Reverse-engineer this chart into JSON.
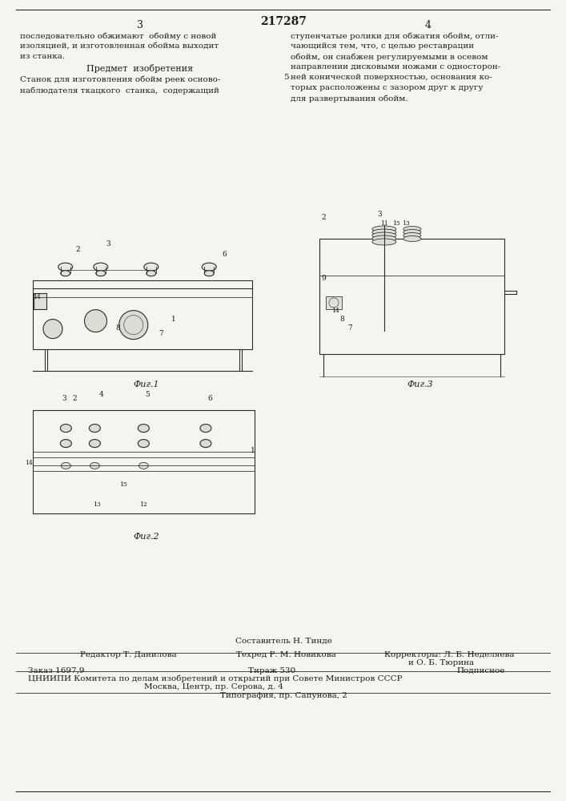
{
  "patent_number": "217287",
  "page_numbers": [
    "3",
    "4"
  ],
  "background_color": "#f5f5f0",
  "text_color": "#1a1a1a",
  "line_color": "#2a2a2a",
  "col3_text": [
    "последовательно обжимают  обойму с новой",
    "изоляцией, и изготовленная обойма выходит",
    "из станка."
  ],
  "predmet_title": "Предмет  изобретения",
  "predmet_text": [
    "Станок для изготовления обойм реек осново-",
    "наблюдателя ткацкого  станка,  содержащий"
  ],
  "col4_text": [
    "ступенчатые ролики для обжатия обойм, отли-",
    "чающийся тем, что, с целью реставрации",
    "обойм, он снабжен регулируемыми в осевом",
    "направлении дисковыми ножами с односторон-",
    "ней конической поверхностью, основания ко-",
    "торых расположены с зазором друг к другу",
    "для развертывания обойм."
  ],
  "col4_number": "5",
  "fig_captions": [
    "Фиг.1",
    "Фиг.2",
    "Фиг.3"
  ],
  "footer_sestavitel": "Составитель Н. Тинде",
  "footer_editor": "Редактор Т. Данилова",
  "footer_tekhred": "Техред Р. М. Новикова",
  "footer_korrektory": "Корректоры: Л. Б. Неделяева",
  "footer_korrektory2": "и О. Б. Тюрина",
  "footer_zakaz": "Заказ 1697,9",
  "footer_tirazh": "Тираж 530",
  "footer_podpisnoe": "Подписное",
  "footer_tsniipI": "ЦНИИПИ Комитета по делам изобретений и открытий при Совете Министров СССР",
  "footer_moskva": "Москва, Центр, пр. Серова, д. 4",
  "footer_tipografiya": "Типография, пр. Сапунова, 2"
}
